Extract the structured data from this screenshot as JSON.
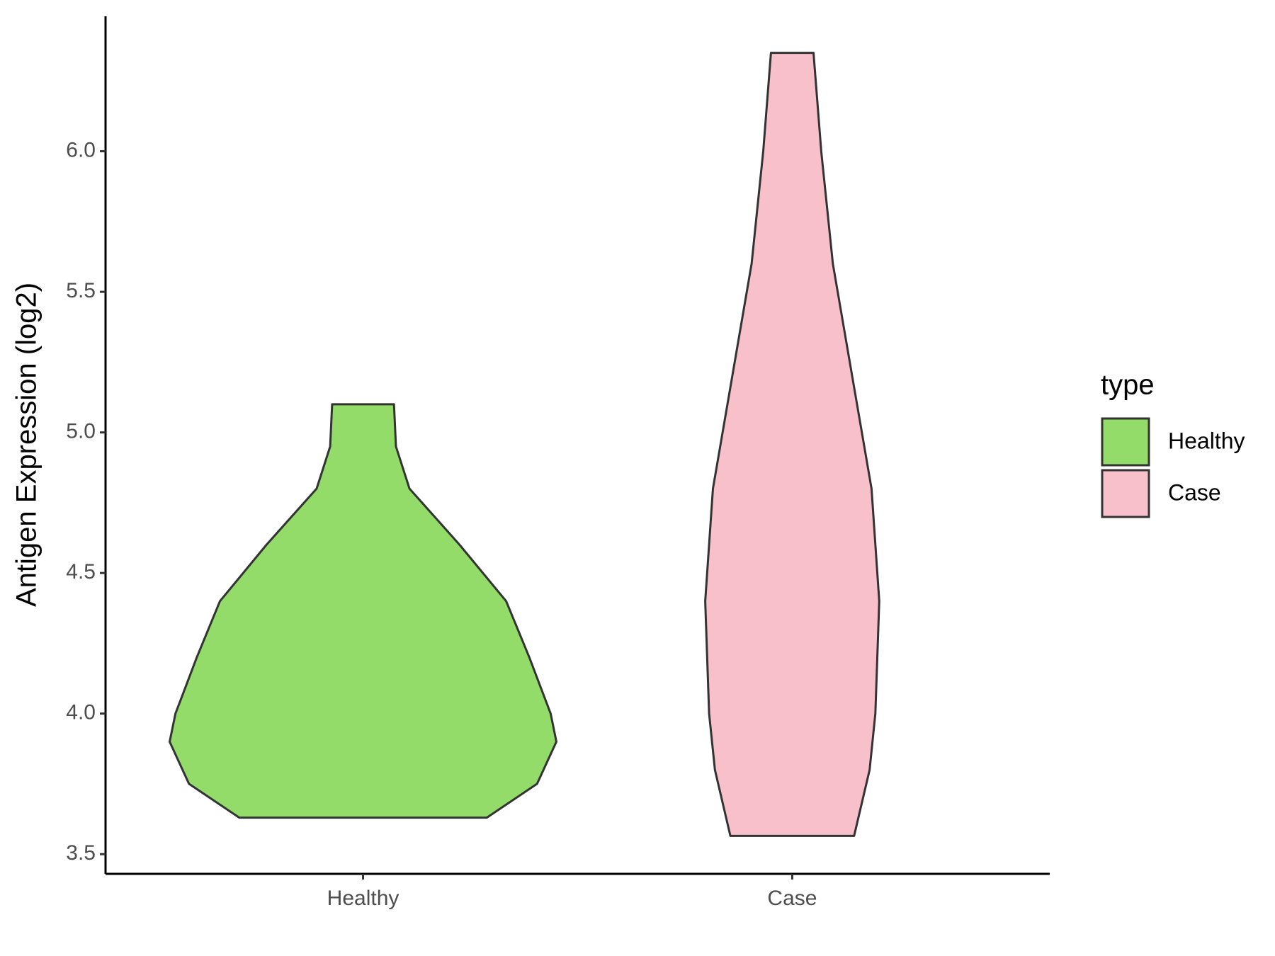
{
  "chart_data": {
    "type": "violin",
    "y_label": "Antigen Expression (log2)",
    "categories": [
      "Healthy",
      "Case"
    ],
    "ylim": [
      3.43,
      6.48
    ],
    "yticks": [
      {
        "value": 3.5,
        "label": "3.5"
      },
      {
        "value": 4.0,
        "label": "4.0"
      },
      {
        "value": 4.5,
        "label": "4.5"
      },
      {
        "value": 5.0,
        "label": "5.0"
      },
      {
        "value": 5.5,
        "label": "5.5"
      },
      {
        "value": 6.0,
        "label": "6.0"
      }
    ],
    "legend_title": "type",
    "legend_position": "right",
    "series": [
      {
        "name": "Healthy",
        "color": "#93dc6a",
        "y": [
          3.63,
          3.75,
          3.9,
          4.0,
          4.2,
          4.4,
          4.6,
          4.8,
          4.95,
          5.1
        ],
        "density": [
          0.64,
          0.9,
          1.0,
          0.97,
          0.86,
          0.74,
          0.5,
          0.24,
          0.17,
          0.16
        ]
      },
      {
        "name": "Case",
        "color": "#f7c0cb",
        "y": [
          3.565,
          3.8,
          4.0,
          4.4,
          4.8,
          5.2,
          5.6,
          6.0,
          6.35
        ],
        "density": [
          0.32,
          0.4,
          0.43,
          0.45,
          0.41,
          0.31,
          0.21,
          0.15,
          0.11
        ]
      }
    ]
  }
}
